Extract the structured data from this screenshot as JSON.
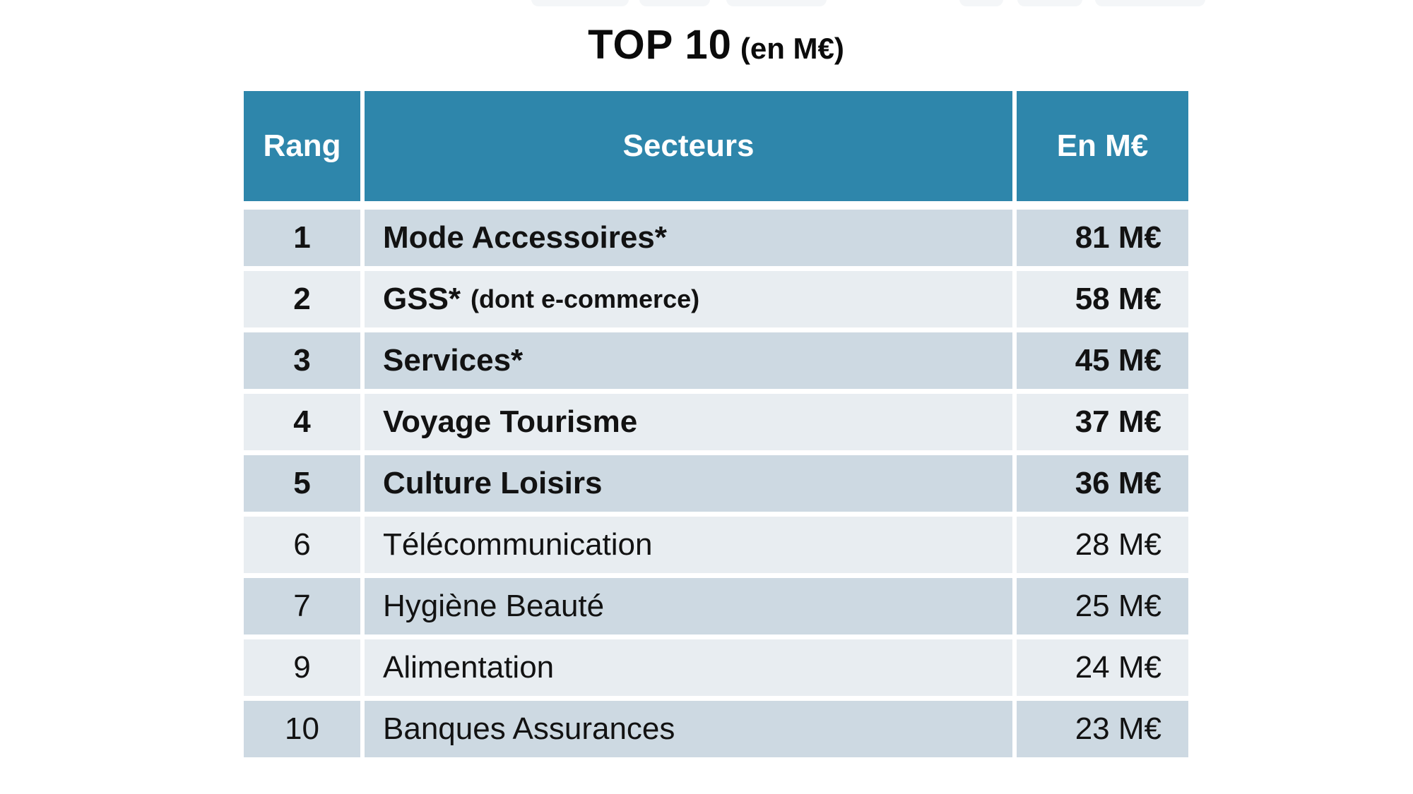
{
  "title": {
    "main": "TOP 10",
    "unit": "(en M€)"
  },
  "table": {
    "headers": {
      "rank": "Rang",
      "sector": "Secteurs",
      "value": "En M€"
    },
    "rows": [
      {
        "rank": "1",
        "sector": "Mode Accessoires*",
        "note": "",
        "value": "81 M€",
        "bold": true
      },
      {
        "rank": "2",
        "sector": "GSS*",
        "note": "(dont e-commerce)",
        "value": "58 M€",
        "bold": true
      },
      {
        "rank": "3",
        "sector": "Services*",
        "note": "",
        "value": "45 M€",
        "bold": true
      },
      {
        "rank": "4",
        "sector": "Voyage Tourisme",
        "note": "",
        "value": "37 M€",
        "bold": true
      },
      {
        "rank": "5",
        "sector": "Culture Loisirs",
        "note": "",
        "value": "36 M€",
        "bold": true
      },
      {
        "rank": "6",
        "sector": "Télécommunication",
        "note": "",
        "value": "28 M€",
        "bold": false
      },
      {
        "rank": "7",
        "sector": "Hygiène Beauté",
        "note": "",
        "value": "25 M€",
        "bold": false
      },
      {
        "rank": "9",
        "sector": "Alimentation",
        "note": "",
        "value": "24 M€",
        "bold": false
      },
      {
        "rank": "10",
        "sector": "Banques Assurances",
        "note": "",
        "value": "23 M€",
        "bold": false
      }
    ]
  },
  "colors": {
    "header_bg": "#2e86ab",
    "row_dark": "#cdd9e2",
    "row_light": "#e8edf1",
    "header_text": "#ffffff",
    "body_text": "#121212"
  },
  "chart_data": {
    "type": "table",
    "title": "TOP 10 (en M€)",
    "columns": [
      "Rang",
      "Secteurs",
      "En M€"
    ],
    "unit": "M€",
    "rows": [
      [
        "1",
        "Mode Accessoires*",
        81
      ],
      [
        "2",
        "GSS* (dont e-commerce)",
        58
      ],
      [
        "3",
        "Services*",
        45
      ],
      [
        "4",
        "Voyage Tourisme",
        37
      ],
      [
        "5",
        "Culture Loisirs",
        36
      ],
      [
        "6",
        "Télécommunication",
        28
      ],
      [
        "7",
        "Hygiène Beauté",
        25
      ],
      [
        "9",
        "Alimentation",
        24
      ],
      [
        "10",
        "Banques Assurances",
        23
      ]
    ]
  }
}
